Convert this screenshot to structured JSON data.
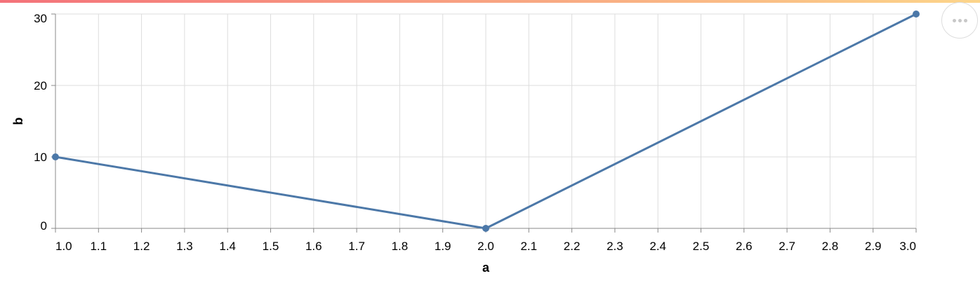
{
  "colors": {
    "line": "#4c78a8",
    "gradient_start": "#f4727a",
    "gradient_end": "#fcd58a"
  },
  "menu": {
    "icon": "more-horizontal-icon"
  },
  "chart_data": {
    "type": "line",
    "xlabel": "a",
    "ylabel": "b",
    "x": [
      1,
      2,
      3
    ],
    "series": [
      {
        "values": [
          10,
          0,
          30
        ]
      }
    ],
    "xlim": [
      1.0,
      3.0
    ],
    "ylim": [
      0,
      30
    ],
    "x_ticks": [
      "1.0",
      "1.1",
      "1.2",
      "1.3",
      "1.4",
      "1.5",
      "1.6",
      "1.7",
      "1.8",
      "1.9",
      "2.0",
      "2.1",
      "2.2",
      "2.3",
      "2.4",
      "2.5",
      "2.6",
      "2.7",
      "2.8",
      "2.9",
      "3.0"
    ],
    "y_ticks": [
      "0",
      "10",
      "20",
      "30"
    ],
    "grid": true,
    "markers": true
  }
}
